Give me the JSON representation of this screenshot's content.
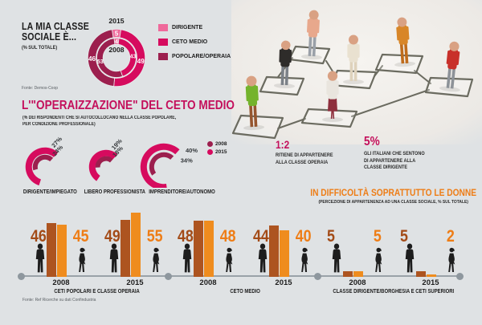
{
  "colors": {
    "background": "#dfe2e4",
    "pink": "#ef699b",
    "crimson": "#d60b5e",
    "maroon": "#9c1f4e",
    "orange": "#ee7d16",
    "rust": "#a34b17",
    "bar_men": "#ad5420",
    "bar_women": "#ef8c1e",
    "ink": "#1d1d1d",
    "timeline_gray": "#9aa2a8"
  },
  "class_chart": {
    "title_line1": "LA MIA CLASSE",
    "title_line2": "SOCIALE È...",
    "subtitle": "(% SUL TOTALE)",
    "source": "Fonte: Demos-Coop",
    "outer_ring_year": "2015",
    "inner_ring_year": "2008",
    "legend": [
      {
        "label": "DIRIGENTE",
        "color": "#ef699b"
      },
      {
        "label": "CETO MEDIO",
        "color": "#d60b5e"
      },
      {
        "label": "POPOLARE/OPERAIA",
        "color": "#9c1f4e"
      }
    ]
  },
  "operaizzazione": {
    "title": "L'\"OPERAIZZAZIONE\" DEL CETO MEDIO",
    "subtitle_line1": "(% DEI RISPONDENTI CHE SI AUTOCOLLOCANO NELLA CLASSE POPOLARE,",
    "subtitle_line2": "PER CONDIZIONE PROFESSIONALE)",
    "legend": [
      {
        "label": "2008",
        "color": "#9c1f4e"
      },
      {
        "label": "2015",
        "color": "#d60b5e"
      }
    ]
  },
  "facts": {
    "ratio_value": "1:2",
    "ratio_line1": "RITIENE DI APPARTENERE",
    "ratio_line2": "ALLA CLASSE OPERAIA",
    "pct_value": "5%",
    "pct_line1": "GLI ITALIANI CHE SENTONO",
    "pct_line2": "DI APPARTENERE ALLA",
    "pct_line3": "CLASSE DIRIGENTE"
  },
  "gender_chart": {
    "title": "IN DIFFICOLTÀ SOPRATTUTTO LE DONNE",
    "subtitle": "(PERCEZIONE DI APPARTENENZA AD UNA CLASSE SOCIALE, % SUL TOTALE)",
    "source": "Fonte: Ref Ricerche su dati Confindustria"
  },
  "chart_data": [
    {
      "type": "pie",
      "variant": "double-donut",
      "title": "LA MIA CLASSE SOCIALE È... (% SUL TOTALE)",
      "categories": [
        "DIRIGENTE",
        "CETO MEDIO",
        "POPOLARE/OPERAIA"
      ],
      "colors": [
        "#ef699b",
        "#d60b5e",
        "#9c1f4e"
      ],
      "series": [
        {
          "name": "2015",
          "ring": "outer",
          "values": [
            5,
            49,
            46
          ]
        },
        {
          "name": "2008",
          "ring": "inner",
          "values": [
            4,
            43,
            53
          ]
        }
      ]
    },
    {
      "type": "pie",
      "variant": "gauge-arcs",
      "title": "L'\"OPERAIZZAZIONE\" DEL CETO MEDIO (% nella classe popolare, per condizione professionale)",
      "categories": [
        "DIRIGENTE/IMPIEGATO",
        "LIBERO PROFESSIONISTA",
        "IMPRENDITORE/AUTONOMO"
      ],
      "unit": "%",
      "series": [
        {
          "name": "2015",
          "color": "#d60b5e",
          "values": [
            27,
            19,
            40
          ]
        },
        {
          "name": "2008",
          "color": "#9c1f4e",
          "values": [
            24,
            18,
            34
          ]
        }
      ],
      "horizontal_labels": [
        false,
        false,
        true
      ]
    },
    {
      "type": "bar",
      "title": "IN DIFFICOLTÀ SOPRATTUTTO LE DONNE (percezione di appartenenza ad una classe sociale, % sul totale)",
      "series_meta": [
        {
          "name": "uomini",
          "marker": "male silhouette",
          "color": "#ad5420"
        },
        {
          "name": "donne",
          "marker": "female silhouette",
          "color": "#ef8c1e"
        }
      ],
      "ylim": [
        0,
        60
      ],
      "groups": [
        {
          "label": "CETI POPOLARI E CLASSE OPERAIA",
          "years": [
            {
              "year": "2008",
              "men": 46,
              "women": 45
            },
            {
              "year": "2015",
              "men": 49,
              "women": 55
            }
          ]
        },
        {
          "label": "CETO MEDIO",
          "years": [
            {
              "year": "2008",
              "men": 48,
              "women": 48
            },
            {
              "year": "2015",
              "men": 44,
              "women": 40
            }
          ]
        },
        {
          "label": "CLASSE DIRIGENTE/BORGHESIA E CETI SUPERIORI",
          "years": [
            {
              "year": "2008",
              "men": 5,
              "women": 5
            },
            {
              "year": "2015",
              "men": 5,
              "women": 2
            }
          ]
        }
      ]
    }
  ],
  "photo": {
    "description": "miniature figurines standing on hand-drawn connected squares",
    "figures": [
      {
        "name": "figurine-green-jacket",
        "shirt": "#74b32c",
        "pants": "#95552e"
      },
      {
        "name": "figurine-black-shirt",
        "shirt": "#2e2c2a",
        "pants": "#7c8188"
      },
      {
        "name": "figurine-salmon-shirt",
        "shirt": "#e8a88c",
        "pants": "#9aa0a8"
      },
      {
        "name": "figurine-woman-maroon",
        "shirt": "#e9e5de",
        "pants": "#8e2f3d"
      },
      {
        "name": "figurine-cream-suit",
        "shirt": "#e9e1d0",
        "pants": "#ded2bc"
      },
      {
        "name": "figurine-orange-suit",
        "shirt": "#d88628",
        "pants": "#bf6c1c"
      },
      {
        "name": "figurine-red-jacket",
        "shirt": "#c8302a",
        "pants": "#8d9298"
      }
    ]
  }
}
